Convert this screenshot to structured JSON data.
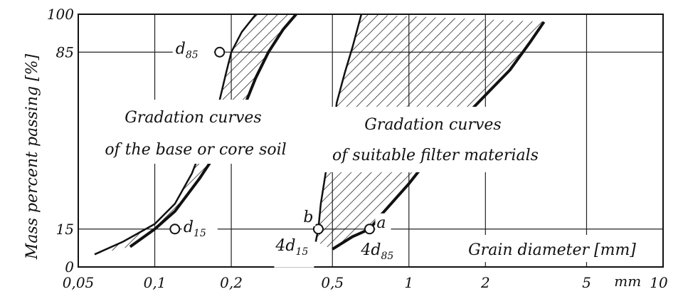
{
  "chart_data": {
    "type": "area",
    "xscale": "log",
    "xlim": [
      0.05,
      10
    ],
    "ylim": [
      0,
      100
    ],
    "ylabel": "Mass percent passing [%]",
    "xlabel": "Grain diameter [mm]",
    "x_ticks": [
      {
        "value": 0.05,
        "label": "0,05"
      },
      {
        "value": 0.1,
        "label": "0,1"
      },
      {
        "value": 0.2,
        "label": "0,2"
      },
      {
        "value": 0.5,
        "label": "0,5"
      },
      {
        "value": 1,
        "label": "1"
      },
      {
        "value": 2,
        "label": "2"
      },
      {
        "value": 5,
        "label": "5"
      },
      {
        "value": 10,
        "label": "10"
      }
    ],
    "x_unit_label": "mm",
    "y_ticks": [
      {
        "value": 0,
        "label": "0"
      },
      {
        "value": 15,
        "label": "15"
      },
      {
        "value": 85,
        "label": "85"
      },
      {
        "value": 100,
        "label": "100"
      }
    ],
    "grid": true,
    "bands": [
      {
        "label": "Gradation curves\nof the base or core soil",
        "fine_boundary": [
          [
            0.058,
            5
          ],
          [
            0.075,
            10
          ],
          [
            0.1,
            17
          ],
          [
            0.12,
            25
          ],
          [
            0.14,
            37
          ],
          [
            0.16,
            52
          ],
          [
            0.18,
            66
          ],
          [
            0.19,
            76
          ],
          [
            0.2,
            85
          ],
          [
            0.22,
            93
          ],
          [
            0.25,
            100
          ]
        ],
        "coarse_boundary": [
          [
            0.08,
            8
          ],
          [
            0.1,
            15
          ],
          [
            0.12,
            22
          ],
          [
            0.15,
            35
          ],
          [
            0.18,
            47
          ],
          [
            0.2,
            57
          ],
          [
            0.23,
            66
          ],
          [
            0.25,
            75
          ],
          [
            0.28,
            85
          ],
          [
            0.32,
            94
          ],
          [
            0.36,
            100
          ]
        ]
      },
      {
        "label": "Gradation curves\nof suitable filter materials",
        "fine_boundary": [
          [
            0.43,
            10
          ],
          [
            0.44,
            15
          ],
          [
            0.45,
            25
          ],
          [
            0.47,
            37
          ],
          [
            0.5,
            52
          ],
          [
            0.52,
            65
          ],
          [
            0.56,
            77
          ],
          [
            0.6,
            87
          ],
          [
            0.65,
            100
          ]
        ],
        "coarse_boundary": [
          [
            0.5,
            7
          ],
          [
            0.6,
            12
          ],
          [
            0.7,
            15
          ],
          [
            0.8,
            22
          ],
          [
            1.0,
            33
          ],
          [
            1.2,
            43
          ],
          [
            1.5,
            55
          ],
          [
            2,
            68
          ],
          [
            2.5,
            78
          ],
          [
            3,
            89
          ],
          [
            3.4,
            97
          ]
        ]
      }
    ],
    "points": [
      {
        "label": "d85",
        "x": 0.18,
        "y": 85
      },
      {
        "label": "d15",
        "x": 0.12,
        "y": 15
      },
      {
        "label": "b",
        "x": 0.44,
        "y": 15
      },
      {
        "label": "a",
        "x": 0.7,
        "y": 15
      }
    ],
    "annotations": [
      "4d15",
      "4d85"
    ]
  }
}
